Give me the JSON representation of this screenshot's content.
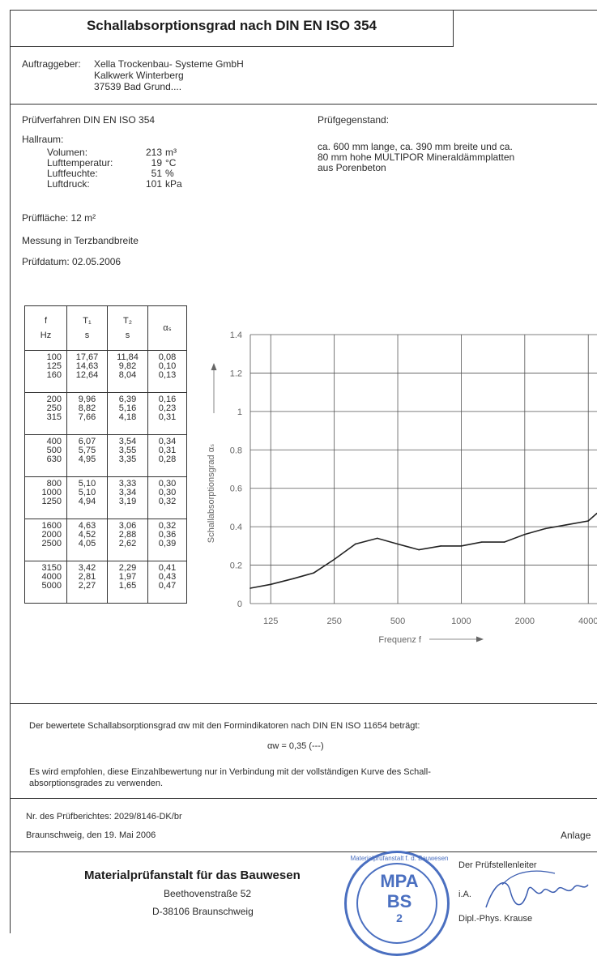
{
  "title": "Schallabsorptionsgrad nach DIN EN ISO 354",
  "client": {
    "label": "Auftraggeber:",
    "lines": [
      "Xella Trockenbau- Systeme GmbH",
      "Kalkwerk Winterberg",
      "37539 Bad Grund...."
    ]
  },
  "method": "Prüfverfahren DIN EN ISO 354",
  "hall": {
    "label": "Hallraum:",
    "rows": [
      {
        "name": "Volumen:",
        "value": "213",
        "unit": "m³"
      },
      {
        "name": "Lufttemperatur:",
        "value": "19",
        "unit": "°C"
      },
      {
        "name": "Luftfeuchte:",
        "value": "51",
        "unit": "%"
      },
      {
        "name": "Luftdruck:",
        "value": "101",
        "unit": "kPa"
      }
    ]
  },
  "area": "Prüffläche: 12 m²",
  "bandwidth": "Messung in Terzbandbreite",
  "date": "Prüfdatum: 02.05.2006",
  "specimen": {
    "label": "Prüfgegenstand:",
    "lines": [
      "ca. 600 mm lange, ca. 390 mm breite und ca.",
      "80 mm hohe MULTIPOR Mineraldämmplatten",
      "aus Porenbeton"
    ]
  },
  "table": {
    "headers": [
      {
        "top": "f",
        "bottom": "Hz"
      },
      {
        "top": "T₁",
        "bottom": "s"
      },
      {
        "top": "T₂",
        "bottom": "s"
      },
      {
        "top": "αₛ",
        "bottom": ""
      }
    ],
    "groups": [
      [
        [
          "100",
          "17,67",
          "11,84",
          "0,08"
        ],
        [
          "125",
          "14,63",
          "9,82",
          "0,10"
        ],
        [
          "160",
          "12,64",
          "8,04",
          "0,13"
        ]
      ],
      [
        [
          "200",
          "9,96",
          "6,39",
          "0,16"
        ],
        [
          "250",
          "8,82",
          "5,16",
          "0,23"
        ],
        [
          "315",
          "7,66",
          "4,18",
          "0,31"
        ]
      ],
      [
        [
          "400",
          "6,07",
          "3,54",
          "0,34"
        ],
        [
          "500",
          "5,75",
          "3,55",
          "0,31"
        ],
        [
          "630",
          "4,95",
          "3,35",
          "0,28"
        ]
      ],
      [
        [
          "800",
          "5,10",
          "3,33",
          "0,30"
        ],
        [
          "1000",
          "5,10",
          "3,34",
          "0,30"
        ],
        [
          "1250",
          "4,94",
          "3,19",
          "0,32"
        ]
      ],
      [
        [
          "1600",
          "4,63",
          "3,06",
          "0,32"
        ],
        [
          "2000",
          "4,52",
          "2,88",
          "0,36"
        ],
        [
          "2500",
          "4,05",
          "2,62",
          "0,39"
        ]
      ],
      [
        [
          "3150",
          "3,42",
          "2,29",
          "0,41"
        ],
        [
          "4000",
          "2,81",
          "1,97",
          "0,43"
        ],
        [
          "5000",
          "2,27",
          "1,65",
          "0,47"
        ]
      ]
    ]
  },
  "chart_data": {
    "type": "line",
    "ylabel": "Schallabsorptionsgrad αₛ",
    "xlabel": "Frequenz f",
    "x_scale": "log",
    "ylim": [
      0,
      1.4
    ],
    "yticks": [
      "0",
      "0.2",
      "0.4",
      "0.6",
      "0.8",
      "1",
      "1.2",
      "1.4"
    ],
    "xticks": [
      "125",
      "250",
      "500",
      "1000",
      "2000",
      "4000"
    ],
    "grid": true,
    "x": [
      100,
      125,
      160,
      200,
      250,
      315,
      400,
      500,
      630,
      800,
      1000,
      1250,
      1600,
      2000,
      2500,
      3150,
      4000,
      5000
    ],
    "values": [
      0.08,
      0.1,
      0.13,
      0.16,
      0.23,
      0.31,
      0.34,
      0.31,
      0.28,
      0.3,
      0.3,
      0.32,
      0.32,
      0.36,
      0.39,
      0.41,
      0.43,
      0.47
    ]
  },
  "summary": {
    "text1": "Der bewertete Schallabsorptionsgrad αw mit den Formindikatoren nach DIN EN ISO 11654 beträgt:",
    "formula": "αw = 0,35 (---)",
    "text2": "Es wird empfohlen, diese Einzahlbewertung nur in Verbindung mit der vollständigen Kurve des Schall-",
    "text3": "absorptionsgrades zu verwenden."
  },
  "report_no": "Nr. des Prüfberichtes:  2029/8146-DK/br",
  "place_date": "Braunschweig, den  19. Mai 2006",
  "annex": "Anlage",
  "institute": {
    "name": "Materialprüfanstalt für das Bauwesen",
    "street": "Beethovenstraße  52",
    "city": "D-38106 Braunschweig"
  },
  "stamp": {
    "ring": "Materialprüfanstalt f. d. Bauwesen",
    "line1": "MPA",
    "line2": "BS",
    "num": "2"
  },
  "signature": {
    "role": "Der Prüfstellenleiter",
    "ia": "i.A.",
    "name": "Dipl.-Phys. Krause"
  },
  "colors": {
    "line": "#333333",
    "grid": "#555555",
    "stamp": "#4a6fc0"
  }
}
